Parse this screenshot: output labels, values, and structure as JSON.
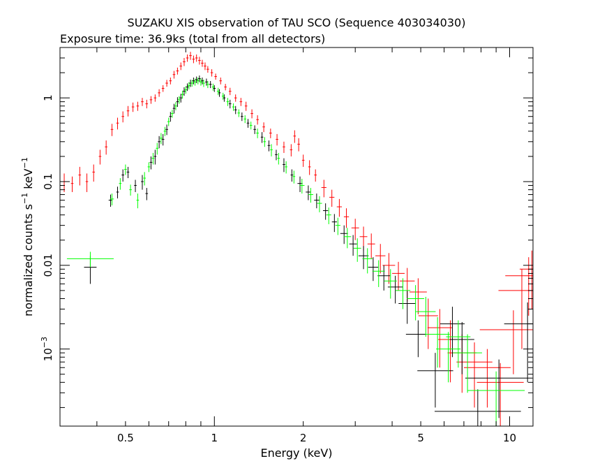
{
  "chart_data": {
    "type": "scatter",
    "title": "SUZAKU XIS observation of TAU SCO (Sequence 403034030)",
    "subtitle": "Exposure time: 36.9ks (total from all detectors)",
    "xlabel": "Energy (keV)",
    "ylabel": {
      "base": "normalized counts s",
      "sup1": "−1",
      "mid": " keV",
      "sup2": "−1"
    },
    "xscale": "log",
    "yscale": "log",
    "xlim": [
      0.3,
      12
    ],
    "ylim": [
      0.00012,
      4
    ],
    "x_ticks": [
      0.5,
      1,
      2,
      5,
      10
    ],
    "x_tick_labels": [
      "0.5",
      "1",
      "2",
      "5",
      "10"
    ],
    "y_ticks": [
      1,
      0.1,
      0.01
    ],
    "y_tick_labels": [
      "1",
      "0.1",
      "0.01"
    ],
    "y_tick_power": {
      "value": 0.001,
      "base": "10",
      "exp": "−3"
    },
    "grid": false,
    "series": [
      {
        "color": "#ff0000",
        "points": [
          [
            0.31,
            0.1,
            0.025,
            0.01
          ],
          [
            0.33,
            0.095,
            0.02,
            0.01
          ],
          [
            0.35,
            0.12,
            0.03,
            0.01
          ],
          [
            0.37,
            0.1,
            0.025,
            0.01
          ],
          [
            0.39,
            0.13,
            0.03,
            0.01
          ],
          [
            0.41,
            0.2,
            0.04,
            0.01
          ],
          [
            0.43,
            0.26,
            0.05,
            0.01
          ],
          [
            0.45,
            0.42,
            0.07,
            0.01
          ],
          [
            0.47,
            0.5,
            0.08,
            0.01
          ],
          [
            0.49,
            0.6,
            0.09,
            0.01
          ],
          [
            0.51,
            0.7,
            0.1,
            0.01
          ],
          [
            0.53,
            0.78,
            0.1,
            0.01
          ],
          [
            0.55,
            0.8,
            0.1,
            0.01
          ],
          [
            0.57,
            0.9,
            0.1,
            0.01
          ],
          [
            0.59,
            0.85,
            0.1,
            0.01
          ],
          [
            0.61,
            0.95,
            0.1,
            0.01
          ],
          [
            0.63,
            1.0,
            0.1,
            0.01
          ],
          [
            0.65,
            1.15,
            0.12,
            0.01
          ],
          [
            0.67,
            1.3,
            0.12,
            0.01
          ],
          [
            0.69,
            1.5,
            0.14,
            0.01
          ],
          [
            0.71,
            1.6,
            0.15,
            0.01
          ],
          [
            0.73,
            1.9,
            0.2,
            0.01
          ],
          [
            0.75,
            2.1,
            0.2,
            0.01
          ],
          [
            0.77,
            2.4,
            0.25,
            0.01
          ],
          [
            0.79,
            2.7,
            0.3,
            0.01
          ],
          [
            0.81,
            3.0,
            0.3,
            0.01
          ],
          [
            0.83,
            3.2,
            0.35,
            0.01
          ],
          [
            0.85,
            2.9,
            0.3,
            0.01
          ],
          [
            0.87,
            3.0,
            0.3,
            0.01
          ],
          [
            0.89,
            2.8,
            0.3,
            0.01
          ],
          [
            0.91,
            2.6,
            0.25,
            0.01
          ],
          [
            0.93,
            2.4,
            0.25,
            0.01
          ],
          [
            0.95,
            2.2,
            0.2,
            0.01
          ],
          [
            0.98,
            2.0,
            0.2,
            0.01
          ],
          [
            1.01,
            1.8,
            0.15,
            0.01
          ],
          [
            1.05,
            1.6,
            0.15,
            0.01
          ],
          [
            1.09,
            1.35,
            0.12,
            0.01
          ],
          [
            1.13,
            1.2,
            0.12,
            0.01
          ],
          [
            1.18,
            1.0,
            0.1,
            0.01
          ],
          [
            1.23,
            0.9,
            0.1,
            0.01
          ],
          [
            1.28,
            0.8,
            0.1,
            0.01
          ],
          [
            1.34,
            0.65,
            0.08,
            0.01
          ],
          [
            1.4,
            0.55,
            0.07,
            0.01
          ],
          [
            1.47,
            0.45,
            0.06,
            0.01
          ],
          [
            1.55,
            0.38,
            0.05,
            0.01
          ],
          [
            1.63,
            0.32,
            0.05,
            0.01
          ],
          [
            1.72,
            0.26,
            0.04,
            0.01
          ],
          [
            1.82,
            0.24,
            0.04,
            0.01
          ],
          [
            1.87,
            0.35,
            0.06,
            0.01
          ],
          [
            1.93,
            0.28,
            0.05,
            0.01
          ],
          [
            2.0,
            0.18,
            0.03,
            0.01
          ],
          [
            2.1,
            0.15,
            0.03,
            0.01
          ],
          [
            2.2,
            0.12,
            0.02,
            0.01
          ],
          [
            2.35,
            0.085,
            0.02,
            0.02
          ],
          [
            2.5,
            0.065,
            0.015,
            0.02
          ],
          [
            2.65,
            0.05,
            0.012,
            0.02
          ],
          [
            2.8,
            0.038,
            0.01,
            0.02
          ],
          [
            3.0,
            0.028,
            0.008,
            0.03
          ],
          [
            3.2,
            0.022,
            0.007,
            0.03
          ],
          [
            3.4,
            0.018,
            0.006,
            0.03
          ],
          [
            3.65,
            0.013,
            0.005,
            0.04
          ],
          [
            3.9,
            0.01,
            0.004,
            0.05
          ],
          [
            4.2,
            0.008,
            0.003,
            0.05
          ],
          [
            4.5,
            0.0065,
            0.0028,
            0.06
          ],
          [
            4.9,
            0.0048,
            0.0022,
            0.07
          ],
          [
            5.3,
            0.0025,
            0.0015,
            0.08
          ],
          [
            5.8,
            0.0018,
            0.0012,
            0.1
          ],
          [
            6.3,
            0.0013,
            0.0009,
            0.1
          ],
          [
            6.9,
            0.0009,
            0.0006,
            0.12
          ],
          [
            7.6,
            0.0007,
            0.0005,
            0.15
          ],
          [
            8.4,
            0.0006,
            0.0004,
            0.2
          ],
          [
            9.3,
            0.0004,
            0.00028,
            0.2
          ],
          [
            10.3,
            0.0017,
            0.0012,
            0.3
          ],
          [
            11.0,
            0.005,
            0.004,
            0.2
          ],
          [
            11.6,
            0.0075,
            0.005,
            0.2
          ],
          [
            11.9,
            0.009,
            0.006,
            0.1
          ]
        ]
      },
      {
        "color": "#000000",
        "points": [
          [
            0.38,
            0.0095,
            0.0035,
            0.05
          ],
          [
            0.445,
            0.06,
            0.01,
            0.015
          ],
          [
            0.47,
            0.075,
            0.012,
            0.01
          ],
          [
            0.49,
            0.12,
            0.02,
            0.01
          ],
          [
            0.51,
            0.13,
            0.02,
            0.01
          ],
          [
            0.54,
            0.09,
            0.015,
            0.01
          ],
          [
            0.57,
            0.1,
            0.02,
            0.01
          ],
          [
            0.59,
            0.072,
            0.012,
            0.01
          ],
          [
            0.61,
            0.17,
            0.03,
            0.01
          ],
          [
            0.63,
            0.2,
            0.04,
            0.01
          ],
          [
            0.65,
            0.3,
            0.05,
            0.01
          ],
          [
            0.67,
            0.32,
            0.05,
            0.01
          ],
          [
            0.69,
            0.42,
            0.06,
            0.01
          ],
          [
            0.71,
            0.6,
            0.08,
            0.01
          ],
          [
            0.73,
            0.75,
            0.1,
            0.01
          ],
          [
            0.75,
            0.9,
            0.12,
            0.01
          ],
          [
            0.77,
            1.0,
            0.12,
            0.01
          ],
          [
            0.79,
            1.2,
            0.14,
            0.01
          ],
          [
            0.81,
            1.35,
            0.14,
            0.01
          ],
          [
            0.83,
            1.5,
            0.15,
            0.01
          ],
          [
            0.85,
            1.6,
            0.15,
            0.01
          ],
          [
            0.87,
            1.65,
            0.15,
            0.01
          ],
          [
            0.89,
            1.7,
            0.15,
            0.01
          ],
          [
            0.91,
            1.6,
            0.15,
            0.01
          ],
          [
            0.94,
            1.55,
            0.15,
            0.01
          ],
          [
            0.97,
            1.45,
            0.14,
            0.01
          ],
          [
            1.0,
            1.3,
            0.12,
            0.01
          ],
          [
            1.04,
            1.15,
            0.12,
            0.01
          ],
          [
            1.08,
            1.0,
            0.1,
            0.01
          ],
          [
            1.13,
            0.85,
            0.1,
            0.01
          ],
          [
            1.18,
            0.72,
            0.08,
            0.01
          ],
          [
            1.24,
            0.6,
            0.07,
            0.01
          ],
          [
            1.3,
            0.5,
            0.06,
            0.01
          ],
          [
            1.37,
            0.42,
            0.05,
            0.01
          ],
          [
            1.45,
            0.34,
            0.05,
            0.01
          ],
          [
            1.53,
            0.27,
            0.04,
            0.01
          ],
          [
            1.62,
            0.21,
            0.03,
            0.01
          ],
          [
            1.72,
            0.16,
            0.03,
            0.01
          ],
          [
            1.83,
            0.12,
            0.02,
            0.01
          ],
          [
            1.95,
            0.095,
            0.02,
            0.02
          ],
          [
            2.08,
            0.075,
            0.015,
            0.02
          ],
          [
            2.22,
            0.06,
            0.012,
            0.02
          ],
          [
            2.38,
            0.045,
            0.01,
            0.02
          ],
          [
            2.55,
            0.033,
            0.008,
            0.02
          ],
          [
            2.75,
            0.024,
            0.006,
            0.03
          ],
          [
            2.95,
            0.018,
            0.005,
            0.03
          ],
          [
            3.2,
            0.013,
            0.004,
            0.04
          ],
          [
            3.45,
            0.0095,
            0.003,
            0.04
          ],
          [
            3.75,
            0.0075,
            0.0025,
            0.05
          ],
          [
            4.1,
            0.0055,
            0.002,
            0.06
          ],
          [
            4.5,
            0.0035,
            0.0015,
            0.07
          ],
          [
            4.9,
            0.0015,
            0.0007,
            0.1
          ],
          [
            5.6,
            0.00055,
            0.00035,
            0.15
          ],
          [
            6.4,
            0.002,
            0.0012,
            0.1
          ],
          [
            6.9,
            0.0013,
            0.0008,
            0.1
          ],
          [
            7.8,
            0.00018,
            0.00015,
            0.4
          ],
          [
            9.2,
            0.00045,
            0.0003,
            0.3
          ],
          [
            11.5,
            0.002,
            0.0016,
            0.2
          ]
        ]
      },
      {
        "color": "#00ff00",
        "points": [
          [
            0.38,
            0.012,
            0.0025,
            0.2
          ],
          [
            0.45,
            0.062,
            0.01,
            0.015
          ],
          [
            0.48,
            0.095,
            0.015,
            0.01
          ],
          [
            0.5,
            0.14,
            0.02,
            0.01
          ],
          [
            0.52,
            0.08,
            0.012,
            0.01
          ],
          [
            0.55,
            0.06,
            0.012,
            0.01
          ],
          [
            0.58,
            0.11,
            0.02,
            0.01
          ],
          [
            0.6,
            0.15,
            0.02,
            0.01
          ],
          [
            0.62,
            0.19,
            0.03,
            0.01
          ],
          [
            0.64,
            0.25,
            0.04,
            0.01
          ],
          [
            0.66,
            0.33,
            0.05,
            0.01
          ],
          [
            0.68,
            0.4,
            0.05,
            0.01
          ],
          [
            0.7,
            0.52,
            0.06,
            0.01
          ],
          [
            0.72,
            0.65,
            0.07,
            0.01
          ],
          [
            0.74,
            0.8,
            0.09,
            0.01
          ],
          [
            0.76,
            0.95,
            0.1,
            0.01
          ],
          [
            0.78,
            1.1,
            0.12,
            0.01
          ],
          [
            0.8,
            1.25,
            0.13,
            0.01
          ],
          [
            0.82,
            1.4,
            0.14,
            0.01
          ],
          [
            0.84,
            1.5,
            0.14,
            0.01
          ],
          [
            0.86,
            1.55,
            0.15,
            0.01
          ],
          [
            0.88,
            1.6,
            0.15,
            0.01
          ],
          [
            0.9,
            1.55,
            0.15,
            0.01
          ],
          [
            0.92,
            1.5,
            0.15,
            0.01
          ],
          [
            0.95,
            1.45,
            0.14,
            0.01
          ],
          [
            0.99,
            1.35,
            0.13,
            0.01
          ],
          [
            1.03,
            1.2,
            0.12,
            0.01
          ],
          [
            1.07,
            1.05,
            0.1,
            0.01
          ],
          [
            1.11,
            0.9,
            0.1,
            0.01
          ],
          [
            1.16,
            0.78,
            0.08,
            0.01
          ],
          [
            1.21,
            0.66,
            0.07,
            0.01
          ],
          [
            1.27,
            0.56,
            0.06,
            0.01
          ],
          [
            1.33,
            0.47,
            0.05,
            0.01
          ],
          [
            1.4,
            0.38,
            0.05,
            0.01
          ],
          [
            1.48,
            0.3,
            0.04,
            0.01
          ],
          [
            1.56,
            0.24,
            0.04,
            0.01
          ],
          [
            1.65,
            0.19,
            0.03,
            0.01
          ],
          [
            1.75,
            0.15,
            0.025,
            0.01
          ],
          [
            1.86,
            0.115,
            0.02,
            0.01
          ],
          [
            1.98,
            0.09,
            0.018,
            0.02
          ],
          [
            2.12,
            0.07,
            0.014,
            0.02
          ],
          [
            2.27,
            0.055,
            0.012,
            0.02
          ],
          [
            2.44,
            0.04,
            0.009,
            0.02
          ],
          [
            2.62,
            0.03,
            0.007,
            0.02
          ],
          [
            2.82,
            0.022,
            0.006,
            0.03
          ],
          [
            3.05,
            0.016,
            0.005,
            0.03
          ],
          [
            3.3,
            0.012,
            0.004,
            0.04
          ],
          [
            3.6,
            0.0085,
            0.003,
            0.05
          ],
          [
            3.95,
            0.0065,
            0.0025,
            0.05
          ],
          [
            4.35,
            0.005,
            0.002,
            0.06
          ],
          [
            4.8,
            0.004,
            0.0018,
            0.07
          ],
          [
            5.2,
            0.0028,
            0.0014,
            0.08
          ],
          [
            5.7,
            0.0015,
            0.0009,
            0.1
          ],
          [
            6.2,
            0.001,
            0.0006,
            0.1
          ],
          [
            6.7,
            0.0014,
            0.0008,
            0.1
          ],
          [
            7.2,
            0.0009,
            0.0006,
            0.12
          ],
          [
            9.0,
            0.00032,
            0.00022,
            0.25
          ]
        ]
      }
    ]
  }
}
